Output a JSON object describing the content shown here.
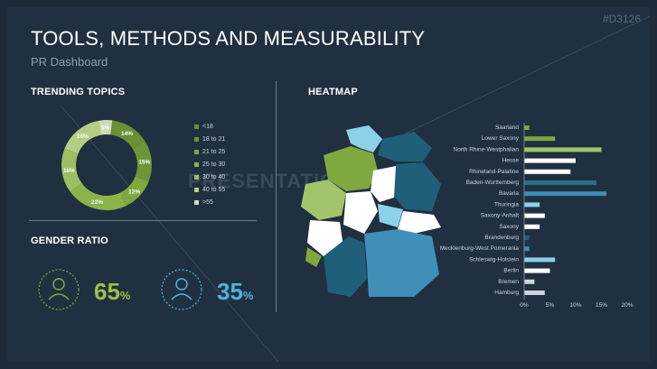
{
  "slide": {
    "code": "#D3126",
    "title": "TOOLS, METHODS AND MEASURABILITY",
    "subtitle": "PR Dashboard",
    "watermark": "PRESENTATIONLOAD"
  },
  "sections": {
    "trending": "TRENDING TOPICS",
    "gender": "GENDER RATIO",
    "heatmap": "HEATMAP"
  },
  "colors": {
    "bg": "#213040",
    "green_dark": "#6a8f35",
    "green_mid": "#7fa83f",
    "green_light": "#a3c46a",
    "blue_light": "#8dd0ea",
    "blue_mid": "#3f8fb8",
    "teal_dark": "#1f5f7a",
    "grey": "#cfd6dc"
  },
  "donut": {
    "segments": [
      {
        "label": "14%",
        "value": 14,
        "color": "#6a8f35"
      },
      {
        "label": "15%",
        "value": 15,
        "color": "#6f9438"
      },
      {
        "label": "12%",
        "value": 12,
        "color": "#7fa83f"
      },
      {
        "label": "22%",
        "value": 22,
        "color": "#8ab447"
      },
      {
        "label": "16%",
        "value": 16,
        "color": "#9dbf62"
      },
      {
        "label": "16%",
        "value": 16,
        "color": "#b3cf84"
      },
      {
        "label": "5%",
        "value": 5,
        "color": "#ccdcb2"
      }
    ],
    "legend": [
      {
        "label": "<18",
        "color": "#6a8f35"
      },
      {
        "label": "18 to 21",
        "color": "#6f9438"
      },
      {
        "label": "21 to 25",
        "color": "#7fa83f"
      },
      {
        "label": "25 to 30",
        "color": "#8ab447"
      },
      {
        "label": "30 to 40",
        "color": "#9dbf62"
      },
      {
        "label": "40 to 55",
        "color": "#b3cf84"
      },
      {
        "label": ">55",
        "color": "#ccdcb2"
      }
    ]
  },
  "gender": {
    "male_pct": "65",
    "female_pct": "35",
    "pct_sign": "%"
  },
  "chart_data": {
    "type": "bar",
    "orientation": "horizontal",
    "categories": [
      "Saarland",
      "Lower Saxony",
      "North Rhine-Westphalian",
      "Hesse",
      "Rhineland-Palatine",
      "Baden-Wurttemberg",
      "Bavaria",
      "Thuringia",
      "Saxony-Anhalt",
      "Saxony",
      "Brandenburg",
      "Mecklenburg-West Pomerania",
      "Schleswig-Holstein",
      "Berlin",
      "Bremen",
      "Hamburg"
    ],
    "values": [
      1,
      6,
      15,
      10,
      9,
      14,
      16,
      3,
      4,
      3,
      1,
      1,
      6,
      5,
      2,
      4
    ],
    "colors": [
      "#7fa83f",
      "#7fa83f",
      "#a3c46a",
      "#ffffff",
      "#ffffff",
      "#2a6f8a",
      "#3f8fb8",
      "#8dd0ea",
      "#ffffff",
      "#ffffff",
      "#1f5f7a",
      "#3f8fb8",
      "#8dd0ea",
      "#ffffff",
      "#cfd6dc",
      "#cfd6dc"
    ],
    "xticks": [
      "0%",
      "5%",
      "10%",
      "15%",
      "20%"
    ],
    "xlim": [
      0,
      20
    ]
  }
}
